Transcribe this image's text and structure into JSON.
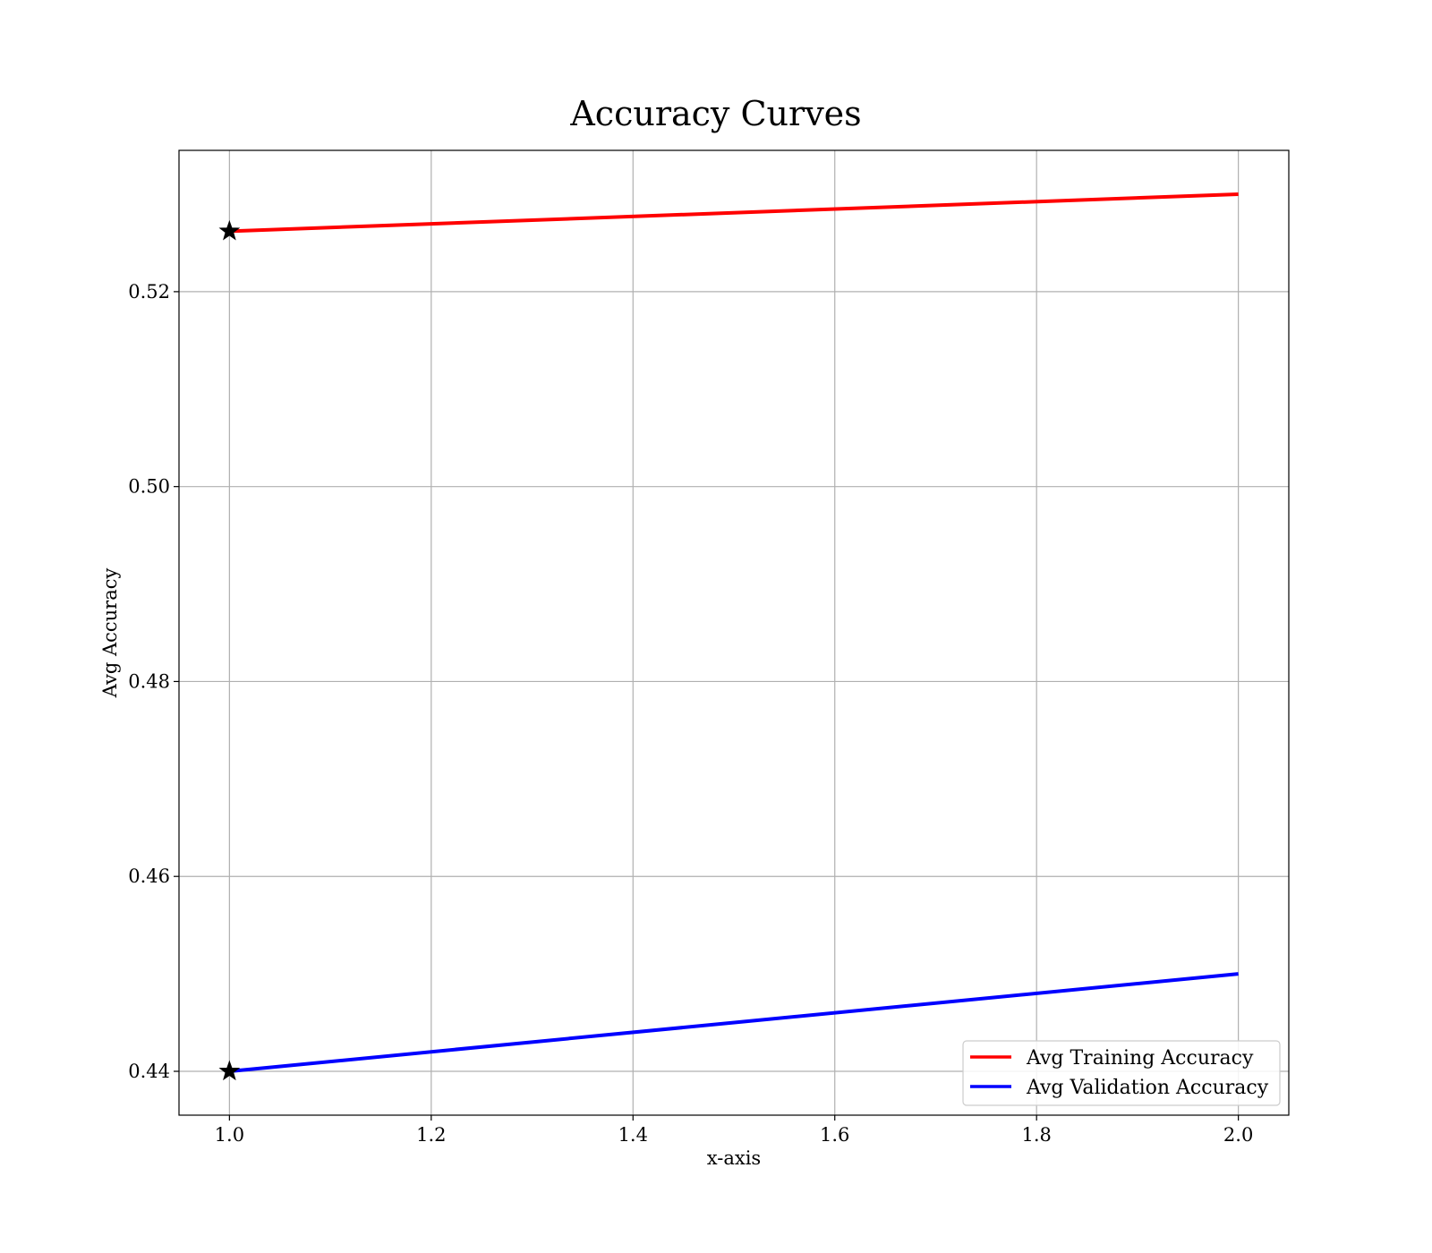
{
  "chart_data": {
    "type": "line",
    "title": "Accuracy Curves",
    "xlabel": "x-axis",
    "ylabel": "Avg Accuracy",
    "xlim": [
      0.95,
      2.05
    ],
    "ylim": [
      0.4355,
      0.5345
    ],
    "xticks": [
      1.0,
      1.2,
      1.4,
      1.6,
      1.8,
      2.0
    ],
    "xtick_labels": [
      "1.0",
      "1.2",
      "1.4",
      "1.6",
      "1.8",
      "2.0"
    ],
    "yticks": [
      0.44,
      0.46,
      0.48,
      0.5,
      0.52
    ],
    "ytick_labels": [
      "0.44",
      "0.46",
      "0.48",
      "0.50",
      "0.52"
    ],
    "grid": true,
    "legend_position": "lower right",
    "series": [
      {
        "name": "Avg Training Accuracy",
        "color": "#ff0000",
        "x": [
          1.0,
          2.0
        ],
        "y": [
          0.5262,
          0.53
        ],
        "best_marker": {
          "x": 1.0,
          "y": 0.5262,
          "symbol": "star"
        }
      },
      {
        "name": "Avg Validation Accuracy",
        "color": "#0000ff",
        "x": [
          1.0,
          2.0
        ],
        "y": [
          0.44,
          0.45
        ],
        "best_marker": {
          "x": 1.0,
          "y": 0.44,
          "symbol": "star"
        }
      }
    ]
  }
}
